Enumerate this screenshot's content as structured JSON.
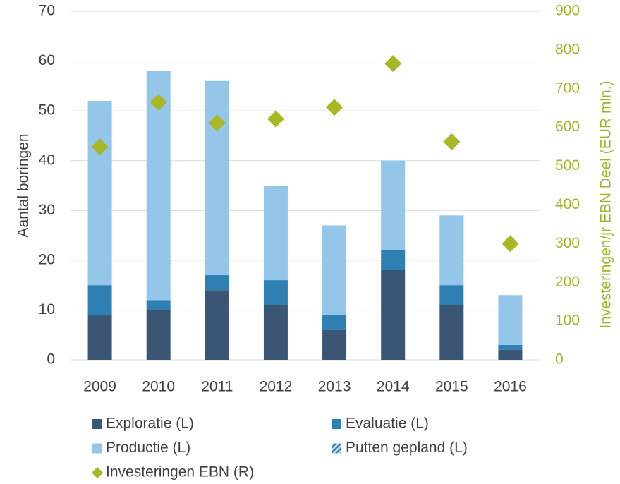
{
  "chart_data": {
    "type": "bar",
    "stacked": true,
    "categories": [
      "2009",
      "2010",
      "2011",
      "2012",
      "2013",
      "2014",
      "2015",
      "2016"
    ],
    "ylabel": "Aantal boringen",
    "y2label": "Investeringen/jr  EBN Deel (EUR mln.)",
    "ylim": [
      0,
      70
    ],
    "yticks": [
      0,
      10,
      20,
      30,
      40,
      50,
      60,
      70
    ],
    "y2lim": [
      0,
      900
    ],
    "y2ticks": [
      0,
      100,
      200,
      300,
      400,
      500,
      600,
      700,
      800,
      900
    ],
    "y2color": "#a2b22a",
    "grid": true,
    "legend": "bottom",
    "series": [
      {
        "name": "Exploratie (L)",
        "color": "#3b5675",
        "values": [
          9,
          10,
          14,
          11,
          6,
          18,
          11,
          2
        ]
      },
      {
        "name": "Evaluatie (L)",
        "color": "#2e80b3",
        "values": [
          6,
          2,
          3,
          5,
          3,
          4,
          4,
          1
        ]
      },
      {
        "name": "Productie (L)",
        "color": "#93c6e8",
        "values": [
          37,
          46,
          39,
          19,
          18,
          18,
          14,
          10
        ]
      },
      {
        "name": "Putten gepland (L)",
        "color": "#2e80b3",
        "pattern": "hatch",
        "values": [
          null,
          null,
          null,
          null,
          null,
          null,
          null,
          null
        ]
      },
      {
        "name": "Investeringen EBN (R)",
        "color": "#a9b626",
        "type": "scatter",
        "marker": "diamond",
        "axis": "y2",
        "values": [
          550,
          665,
          612,
          622,
          652,
          765,
          563,
          300
        ]
      }
    ]
  }
}
